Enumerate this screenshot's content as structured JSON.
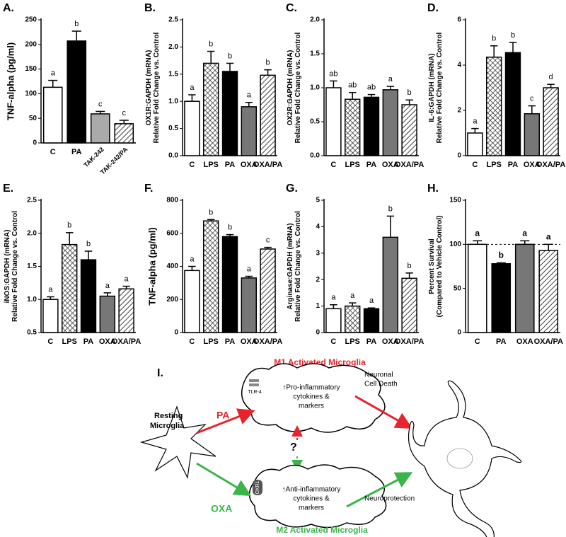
{
  "chart_data": [
    {
      "type": "bar",
      "title": "A.",
      "ylabel": [
        "TNF-alpha (pg/ml)"
      ],
      "categories": [
        "C",
        "PA",
        "TAK-242",
        "TAK-242/PA"
      ],
      "rotate_labels": true,
      "values": [
        113,
        207,
        59,
        39
      ],
      "errors": [
        14,
        20,
        5,
        7
      ],
      "annotations": [
        "a",
        "b",
        "c",
        "c"
      ],
      "fills": [
        "#ffffff",
        "#000000",
        "#aaaaaa",
        "hatch"
      ],
      "ylim": [
        0,
        250
      ],
      "yticks": [
        0,
        50,
        100,
        150,
        200,
        250
      ]
    },
    {
      "type": "bar",
      "title": "B.",
      "ylabel": [
        "OX1R:GAPDH (mRNA)",
        "Relative Fold Change vs. Control"
      ],
      "categories": [
        "C",
        "LPS",
        "PA",
        "OXA",
        "OXA/PA"
      ],
      "values": [
        1.0,
        1.7,
        1.55,
        0.9,
        1.48
      ],
      "errors": [
        0.12,
        0.22,
        0.15,
        0.08,
        0.1
      ],
      "annotations": [
        "a",
        "b",
        "b",
        "a",
        "b"
      ],
      "fills": [
        "#ffffff",
        "cross",
        "#000000",
        "#777777",
        "hatch"
      ],
      "ylim": [
        0,
        2.5
      ],
      "yticks": [
        {
          "value": 0,
          "label": "0.0"
        },
        0.5,
        {
          "value": 1,
          "label": "1.0"
        },
        1.5,
        {
          "value": 2,
          "label": "2.0"
        },
        2.5
      ]
    },
    {
      "type": "bar",
      "title": "C.",
      "ylabel": [
        "OX2R:GAPDH (mRNA)",
        "Relative Fold Change vs. Control"
      ],
      "categories": [
        "C",
        "LPS",
        "PA",
        "OXA",
        "OXA/PA"
      ],
      "values": [
        1.0,
        0.83,
        0.86,
        0.97,
        0.75
      ],
      "errors": [
        0.1,
        0.1,
        0.04,
        0.05,
        0.07
      ],
      "annotations": [
        "ab",
        "ab",
        "ab",
        "a",
        "b"
      ],
      "fills": [
        "#ffffff",
        "cross",
        "#000000",
        "#777777",
        "hatch"
      ],
      "ylim": [
        0,
        2
      ],
      "yticks": [
        {
          "value": 0,
          "label": "0.0"
        },
        0.5,
        {
          "value": 1,
          "label": "1.0"
        },
        1.5,
        {
          "value": 2,
          "label": "2.0"
        }
      ]
    },
    {
      "type": "bar",
      "title": "D.",
      "ylabel": [
        "IL-6:GAPDH (mRNA)",
        "Relative Fold Change vs. Control"
      ],
      "categories": [
        "C",
        "LPS",
        "PA",
        "OXA",
        "OXA/PA"
      ],
      "values": [
        1.0,
        4.35,
        4.55,
        1.85,
        3.0
      ],
      "errors": [
        0.2,
        0.5,
        0.45,
        0.35,
        0.15
      ],
      "annotations": [
        "a",
        "b",
        "b",
        "c",
        "d"
      ],
      "fills": [
        "#ffffff",
        "cross",
        "#000000",
        "#777777",
        "hatch"
      ],
      "ylim": [
        0,
        6
      ],
      "yticks": [
        0,
        2,
        4,
        6
      ]
    },
    {
      "type": "bar",
      "title": "E.",
      "ylabel": [
        "iNOS:GAPDH (mRNA)",
        "Relative Fold Change vs. Control"
      ],
      "categories": [
        "C",
        "LPS",
        "PA",
        "OXA",
        "OXA/PA"
      ],
      "values": [
        1.0,
        1.83,
        1.6,
        1.05,
        1.16
      ],
      "errors": [
        0.04,
        0.18,
        0.13,
        0.05,
        0.04
      ],
      "annotations": [
        "a",
        "b",
        "b",
        "a",
        "a"
      ],
      "fills": [
        "#ffffff",
        "cross",
        "#000000",
        "#777777",
        "hatch"
      ],
      "ylim": [
        0.5,
        2.5
      ],
      "yticks": [
        0.5,
        {
          "value": 1,
          "label": "1.0"
        },
        1.5,
        {
          "value": 2,
          "label": "2.0"
        },
        2.5
      ]
    },
    {
      "type": "bar",
      "title": "F.",
      "ylabel": [
        "TNF-alpha (pg/ml)"
      ],
      "categories": [
        "C",
        "LPS",
        "PA",
        "OXA",
        "OXA/PA"
      ],
      "values": [
        375,
        675,
        580,
        330,
        505
      ],
      "errors": [
        25,
        8,
        12,
        10,
        10
      ],
      "annotations": [
        "a",
        "b",
        "b",
        "a",
        "c"
      ],
      "fills": [
        "#ffffff",
        "cross",
        "#000000",
        "#777777",
        "hatch"
      ],
      "ylim": [
        0,
        800
      ],
      "yticks": [
        0,
        200,
        400,
        600,
        800
      ]
    },
    {
      "type": "bar",
      "title": "G.",
      "ylabel": [
        "Arginase:GAPDH (mRNA)",
        "Relative Fold Change vs. Control"
      ],
      "categories": [
        "C",
        "LPS",
        "PA",
        "OXA",
        "OXA/PA"
      ],
      "values": [
        0.9,
        1.0,
        0.9,
        3.6,
        2.05
      ],
      "errors": [
        0.15,
        0.12,
        0.03,
        0.8,
        0.2
      ],
      "annotations": [
        "a",
        "a",
        "a",
        "b",
        "b"
      ],
      "fills": [
        "#ffffff",
        "cross",
        "#000000",
        "#777777",
        "hatch"
      ],
      "ylim": [
        0,
        5
      ],
      "yticks": [
        0,
        1,
        2,
        3,
        4,
        5
      ]
    },
    {
      "type": "bar",
      "title": "H.",
      "ylabel": [
        "Percent Survival",
        "(Compared to Vehicle Control)"
      ],
      "categories": [
        "C",
        "PA",
        "OXA",
        "OXA/PA"
      ],
      "values": [
        100,
        78,
        100,
        93
      ],
      "errors": [
        4,
        1,
        4,
        7
      ],
      "annotations": [
        "a",
        "b",
        "a",
        "a"
      ],
      "annotation_bold": true,
      "fills": [
        "#ffffff",
        "#000000",
        "#777777",
        "hatch"
      ],
      "ylim": [
        0,
        150
      ],
      "yticks": [
        0,
        50,
        100,
        150
      ],
      "ref_line": 100
    }
  ],
  "diagram": {
    "title": "I.",
    "m1_title": "M1 Activated Microglia",
    "m2_title": "M2 Activated Microglia",
    "resting": [
      "Resting",
      "Microglia"
    ],
    "pa": "PA",
    "oxa": "OXA",
    "tlr4": "TLR-4",
    "oxr1": "OXR1",
    "m1_text": [
      "↑Pro-inflammatory",
      "cytokines &",
      "markers"
    ],
    "m2_text": [
      "↑Anti-inflammatory",
      "cytokines &",
      "markers"
    ],
    "death": [
      "Neuronal",
      "Cell Death"
    ],
    "protection": "Neuroprotection",
    "question": "?"
  }
}
